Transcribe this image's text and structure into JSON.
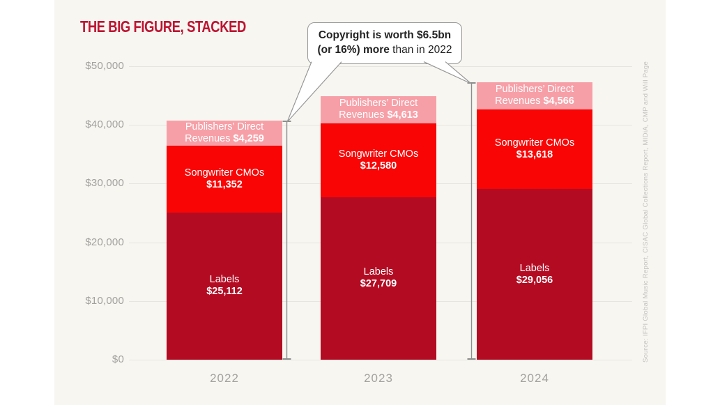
{
  "title": "THE BIG FIGURE, STACKED",
  "callout": {
    "line1": "Copyright is worth $6.5bn",
    "line2_bold": "(or 16%) more",
    "line2_rest": " than in 2022"
  },
  "y_axis": {
    "ticks_top_down": [
      "$50,000",
      "$40,000",
      "$30,000",
      "$20,000",
      "$10,000",
      "$0"
    ]
  },
  "x_axis": {
    "categories": [
      "2022",
      "2023",
      "2024"
    ]
  },
  "bars": [
    {
      "category": "2022",
      "publishers_line1": "Publishers’ Direct",
      "publishers_line2": "Revenues",
      "publishers_value": "$4,259",
      "cmos_label": "Songwriter CMOs",
      "cmos_value": "$11,352",
      "labels_label": "Labels",
      "labels_value": "$25,112"
    },
    {
      "category": "2023",
      "publishers_line1": "Publishers’ Direct",
      "publishers_line2": "Revenues",
      "publishers_value": "$4,613",
      "cmos_label": "Songwriter CMOs",
      "cmos_value": "$12,580",
      "labels_label": "Labels",
      "labels_value": "$27,709"
    },
    {
      "category": "2024",
      "publishers_line1": "Publishers’ Direct",
      "publishers_line2": "Revenues",
      "publishers_value": "$4,566",
      "cmos_label": "Songwriter CMOs",
      "cmos_value": "$13,618",
      "labels_label": "Labels",
      "labels_value": "$29,056"
    }
  ],
  "source_note": "Source: IFPI Global Music Report, CISAC Global Collections Report, MIDiA, CMP and Will Page",
  "colors": {
    "title_red": "#be1432",
    "labels_dark_red": "#b30b22",
    "cmos_bright_red": "#f90505",
    "publishers_pink": "#f79fa7",
    "panel_cream": "#f8f6f1",
    "gridline": "#e7e5e0",
    "axis_text": "#a2a19e",
    "measure_line": "#8d8d8d"
  },
  "chart_data": {
    "type": "bar",
    "stacked": true,
    "title": "THE BIG FIGURE, STACKED",
    "categories": [
      "2022",
      "2023",
      "2024"
    ],
    "series": [
      {
        "name": "Labels",
        "color": "#b30b22",
        "values": [
          25112,
          27709,
          29056
        ]
      },
      {
        "name": "Songwriter CMOs",
        "color": "#f90505",
        "values": [
          11352,
          12580,
          13618
        ]
      },
      {
        "name": "Publishers’ Direct Revenues",
        "color": "#f79fa7",
        "values": [
          4259,
          4613,
          4566
        ]
      }
    ],
    "totals": [
      40723,
      44902,
      47240
    ],
    "xlabel": "",
    "ylabel": "",
    "ylim": [
      0,
      50000
    ],
    "y_tick_values": [
      0,
      10000,
      20000,
      30000,
      40000,
      50000
    ],
    "grid": true,
    "legend": "none (labels inside segments)",
    "annotation": "Copyright is worth $6.5bn (or 16%) more than in 2022"
  }
}
